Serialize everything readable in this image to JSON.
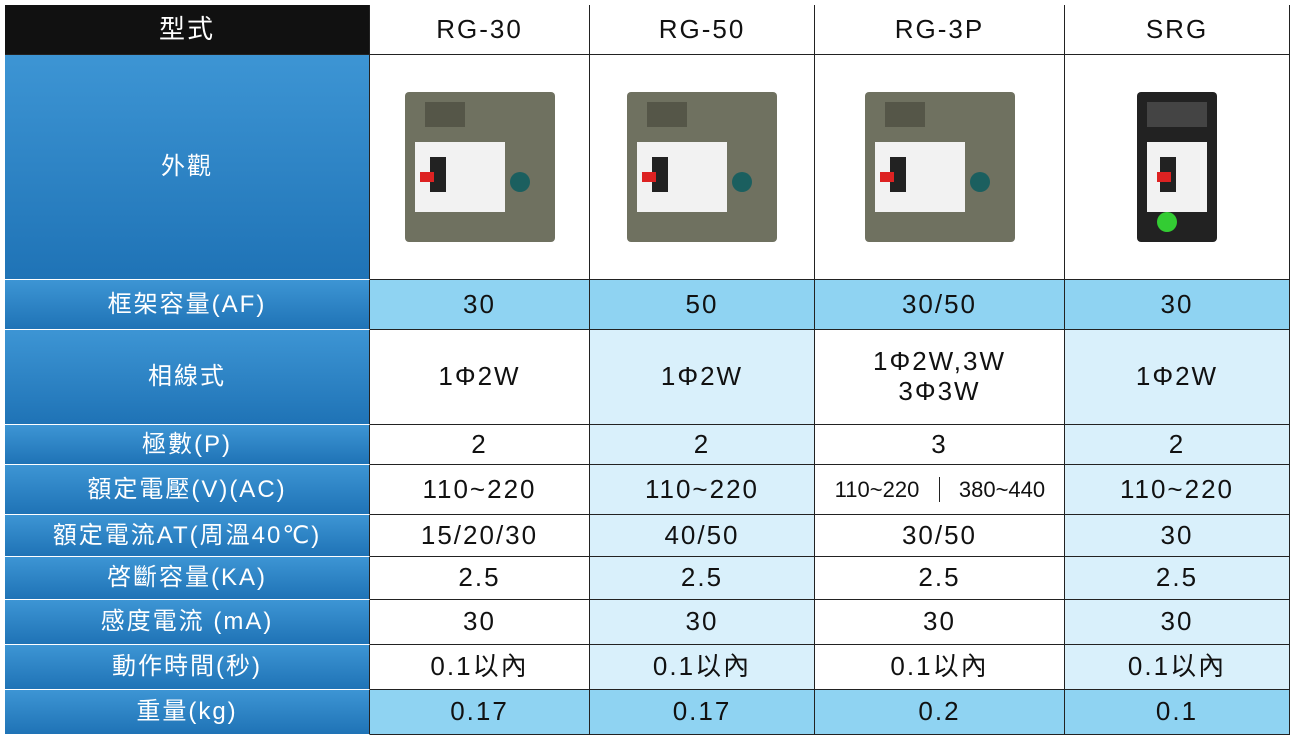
{
  "header": {
    "title": "型式",
    "models": [
      "RG-30",
      "RG-50",
      "RG-3P",
      "SRG"
    ]
  },
  "appearance_label": "外觀",
  "rows": [
    {
      "label": "框架容量(AF)",
      "cells": [
        "30",
        "50",
        "30/50",
        "30"
      ]
    },
    {
      "label": "相線式",
      "cells": [
        "1Φ2W",
        "1Φ2W",
        {
          "lines": [
            "1Φ2W,3W",
            "3Φ3W"
          ]
        },
        "1Φ2W"
      ]
    },
    {
      "label": "極數(P)",
      "cells": [
        "2",
        "2",
        "3",
        "2"
      ]
    },
    {
      "label": "額定電壓(V)(AC)",
      "cells": [
        "110~220",
        "110~220",
        {
          "parts": [
            "110~220",
            "380~440"
          ]
        },
        "110~220"
      ]
    },
    {
      "label": "額定電流AT(周溫40℃)",
      "cells": [
        "15/20/30",
        "40/50",
        "30/50",
        "30"
      ]
    },
    {
      "label": "啓斷容量(KA)",
      "cells": [
        "2.5",
        "2.5",
        "2.5",
        "2.5"
      ]
    },
    {
      "label": "感度電流 (mA)",
      "cells": [
        "30",
        "30",
        "30",
        "30"
      ]
    },
    {
      "label": "動作時間(秒)",
      "cells": [
        "0.1以內",
        "0.1以內",
        "0.1以內",
        "0.1以內"
      ]
    },
    {
      "label": "重量(kg)",
      "cells": [
        "0.17",
        "0.17",
        "0.2",
        "0.1"
      ]
    }
  ]
}
